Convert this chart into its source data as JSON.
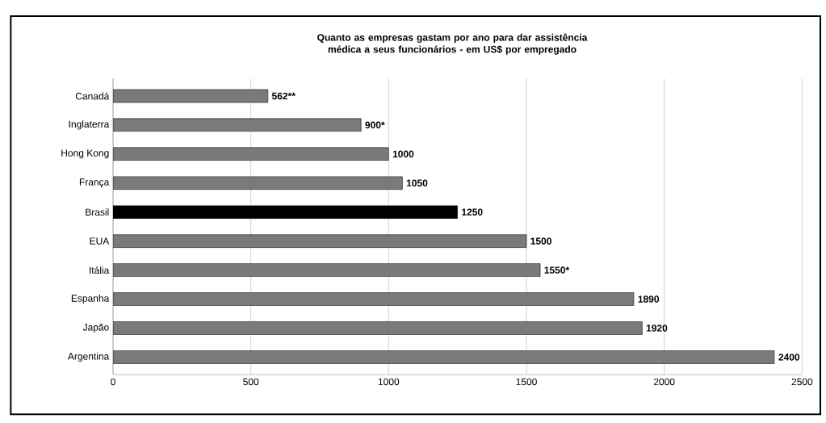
{
  "chart_data": {
    "type": "bar",
    "orientation": "horizontal",
    "title": "Quanto as empresas gastam por ano para dar assistência médica a seus funcionários - em US$ por empregado",
    "categories": [
      "Canadá",
      "Inglaterra",
      "Hong Kong",
      "França",
      "Brasil",
      "EUA",
      "Itália",
      "Espanha",
      "Japão",
      "Argentina"
    ],
    "values": [
      562,
      900,
      1000,
      1050,
      1250,
      1500,
      1550,
      1890,
      1920,
      2400
    ],
    "colors": [
      "#7a7a7a",
      "#7a7a7a",
      "#7a7a7a",
      "#7a7a7a",
      "#000000",
      "#7a7a7a",
      "#7a7a7a",
      "#7a7a7a",
      "#7a7a7a",
      "#7a7a7a"
    ],
    "value_labels": [
      "562**",
      "900*",
      "1000",
      "1050",
      "1250",
      "1500",
      "1550*",
      "1890",
      "1920",
      "2400"
    ],
    "xlim": [
      0,
      2500
    ],
    "xticks": [
      0,
      500,
      1000,
      1500,
      2000,
      2500
    ],
    "grid": "x"
  }
}
